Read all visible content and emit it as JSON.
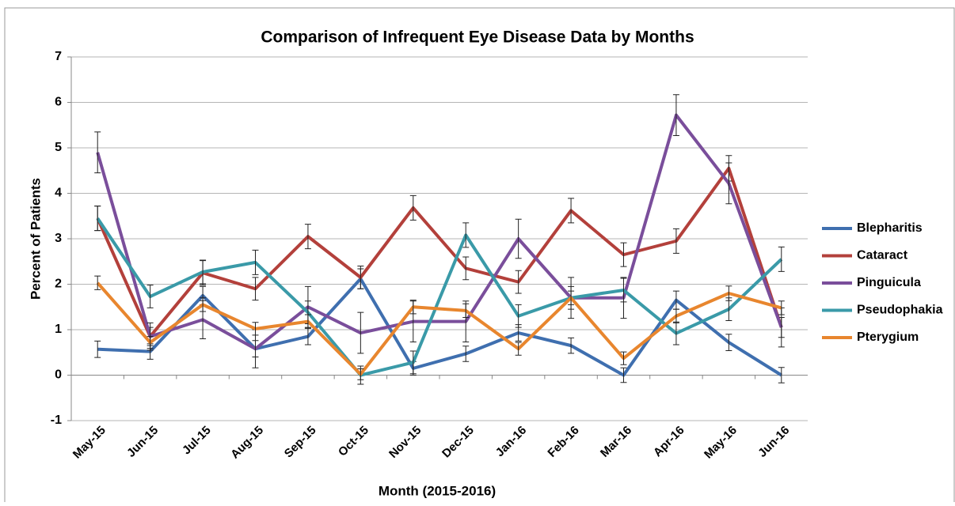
{
  "chart_data": {
    "type": "line",
    "title": "Comparison of Infrequent Eye Disease Data by Months",
    "x_label": "Month (2015-2016)",
    "y_label": "Percent of Patients",
    "categories": [
      "May-15",
      "Jun-15",
      "Jul-15",
      "Aug-15",
      "Sep-15",
      "Oct-15",
      "Nov-15",
      "Dec-15",
      "Jan-16",
      "Feb-16",
      "Mar-16",
      "Apr-16",
      "May-16",
      "Jun-16"
    ],
    "ylim": [
      -1,
      7
    ],
    "yticks": [
      -1,
      0,
      1,
      2,
      3,
      4,
      5,
      6,
      7
    ],
    "grid": true,
    "legend": "right",
    "series": [
      {
        "name": "Blepharitis",
        "color": "#3f6faf",
        "values": [
          0.57,
          0.52,
          1.75,
          0.58,
          0.85,
          2.12,
          0.15,
          0.47,
          0.93,
          0.65,
          0,
          1.65,
          0.72,
          0
        ],
        "errors": [
          0.18,
          0.17,
          0.2,
          0.18,
          0.18,
          0.22,
          0.15,
          0.17,
          0.18,
          0.17,
          0.16,
          0.2,
          0.18,
          0.17
        ]
      },
      {
        "name": "Cataract",
        "color": "#b3403b",
        "values": [
          3.45,
          0.85,
          2.25,
          1.9,
          3.05,
          2.15,
          3.68,
          2.35,
          2.05,
          3.62,
          2.65,
          2.95,
          4.55,
          1.05
        ],
        "errors": [
          0.27,
          0.2,
          0.27,
          0.25,
          0.27,
          0.25,
          0.27,
          0.25,
          0.25,
          0.27,
          0.26,
          0.27,
          0.28,
          0.22
        ]
      },
      {
        "name": "Pinguicula",
        "color": "#7a4e9b",
        "values": [
          4.9,
          0.85,
          1.22,
          0.58,
          1.5,
          0.93,
          1.18,
          1.18,
          3.0,
          1.7,
          1.7,
          5.72,
          4.22,
          1.05
        ],
        "errors": [
          0.45,
          0.3,
          0.42,
          0.42,
          0.45,
          0.45,
          0.45,
          0.45,
          0.43,
          0.45,
          0.45,
          0.45,
          0.45,
          0.43
        ]
      },
      {
        "name": "Pseudophakia",
        "color": "#3a9aa8",
        "values": [
          3.45,
          1.73,
          2.27,
          2.48,
          1.38,
          0,
          0.28,
          3.08,
          1.3,
          1.7,
          1.87,
          0.92,
          1.45,
          2.55
        ],
        "errors": [
          0.27,
          0.25,
          0.26,
          0.27,
          0.25,
          0.2,
          0.25,
          0.27,
          0.25,
          0.25,
          0.26,
          0.25,
          0.25,
          0.27
        ]
      },
      {
        "name": "Pterygium",
        "color": "#e8862e",
        "values": [
          2.03,
          0.72,
          1.55,
          1.02,
          1.18,
          0.02,
          1.5,
          1.42,
          0.58,
          1.7,
          0.37,
          1.3,
          1.8,
          1.48
        ],
        "errors": [
          0.15,
          0.13,
          0.15,
          0.14,
          0.15,
          0.12,
          0.15,
          0.15,
          0.14,
          0.15,
          0.14,
          0.15,
          0.16,
          0.15
        ]
      }
    ]
  }
}
